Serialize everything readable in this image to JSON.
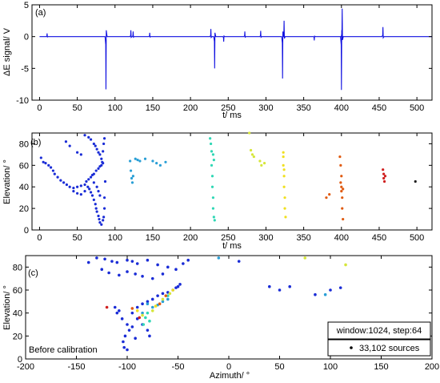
{
  "chart_data": [
    {
      "panel": "(a)",
      "type": "line",
      "xlabel": "t/ ms",
      "ylabel": "ΔE signal/ V",
      "xlim": [
        -10,
        520
      ],
      "ylim": [
        -10,
        5
      ],
      "xticks": [
        0,
        50,
        100,
        150,
        200,
        250,
        300,
        350,
        400,
        450,
        500
      ],
      "yticks": [
        -10,
        -5,
        0,
        5
      ],
      "series": [
        {
          "color": "#1010e0",
          "baseline": 0,
          "events": [
            {
              "t": 10,
              "amp": 0.5
            },
            {
              "t": 88,
              "amp": -8.3
            },
            {
              "t": 121,
              "amp": 1.0
            },
            {
              "t": 124,
              "amp": 0.8
            },
            {
              "t": 146,
              "amp": 0.6
            },
            {
              "t": 227,
              "amp": 1.2
            },
            {
              "t": 232,
              "amp": -5.0
            },
            {
              "t": 244,
              "amp": -0.8
            },
            {
              "t": 272,
              "amp": 0.8
            },
            {
              "t": 293,
              "amp": 0.9
            },
            {
              "t": 322,
              "amp": -6.6
            },
            {
              "t": 324,
              "amp": 2.5
            },
            {
              "t": 364,
              "amp": -0.6
            },
            {
              "t": 400,
              "amp": -8.4
            },
            {
              "t": 401,
              "amp": 4.4
            },
            {
              "t": 455,
              "amp": 1.5
            }
          ]
        }
      ]
    },
    {
      "panel": "(b)",
      "type": "scatter",
      "xlabel": "t/ ms",
      "ylabel": "Elevation/ °",
      "xlim": [
        -10,
        520
      ],
      "ylim": [
        0,
        90
      ],
      "xticks": [
        0,
        50,
        100,
        150,
        200,
        250,
        300,
        350,
        400,
        450,
        500
      ],
      "yticks": [
        0,
        20,
        40,
        60,
        80
      ],
      "clusters": [
        {
          "t": [
            0,
            88
          ],
          "color": "#1a2cd6",
          "points": [
            [
              2,
              67
            ],
            [
              5,
              63
            ],
            [
              8,
              62
            ],
            [
              12,
              60
            ],
            [
              15,
              58
            ],
            [
              18,
              55
            ],
            [
              20,
              52
            ],
            [
              24,
              49
            ],
            [
              28,
              46
            ],
            [
              32,
              44
            ],
            [
              36,
              42
            ],
            [
              40,
              40
            ],
            [
              45,
              39
            ],
            [
              50,
              40
            ],
            [
              55,
              41
            ],
            [
              60,
              42
            ],
            [
              62,
              45
            ],
            [
              65,
              47
            ],
            [
              68,
              49
            ],
            [
              70,
              51
            ],
            [
              72,
              52
            ],
            [
              75,
              55
            ],
            [
              78,
              57
            ],
            [
              80,
              59
            ],
            [
              82,
              60
            ],
            [
              84,
              62
            ],
            [
              66,
              38
            ],
            [
              68,
              35
            ],
            [
              70,
              32
            ],
            [
              72,
              28
            ],
            [
              74,
              24
            ],
            [
              75,
              20
            ],
            [
              76,
              17
            ],
            [
              78,
              13
            ],
            [
              79,
              10
            ],
            [
              80,
              7
            ],
            [
              82,
              5
            ],
            [
              84,
              9
            ],
            [
              85,
              12
            ],
            [
              86,
              20
            ],
            [
              86,
              30
            ],
            [
              87,
              45
            ],
            [
              60,
              88
            ],
            [
              65,
              86
            ],
            [
              68,
              84
            ],
            [
              72,
              80
            ],
            [
              74,
              78
            ],
            [
              76,
              75
            ],
            [
              78,
              72
            ],
            [
              80,
              70
            ],
            [
              82,
              66
            ],
            [
              83,
              63
            ],
            [
              84,
              73
            ],
            [
              85,
              80
            ],
            [
              86,
              85
            ],
            [
              35,
              82
            ],
            [
              40,
              78
            ],
            [
              50,
              72
            ],
            [
              55,
              70
            ],
            [
              45,
              36
            ],
            [
              50,
              34
            ],
            [
              55,
              33
            ],
            [
              60,
              36
            ],
            [
              64,
              40
            ],
            [
              72,
              44
            ],
            [
              76,
              40
            ],
            [
              78,
              36
            ],
            [
              80,
              32
            ]
          ]
        },
        {
          "t": [
            120,
            155
          ],
          "color": "#2a9fd6",
          "points": [
            [
              120,
              64
            ],
            [
              121,
              55
            ],
            [
              122,
              48
            ],
            [
              123,
              44
            ],
            [
              124,
              50
            ],
            [
              127,
              66
            ],
            [
              130,
              65
            ],
            [
              133,
              64
            ],
            [
              140,
              66
            ],
            [
              150,
              64
            ],
            [
              155,
              62
            ],
            [
              160,
              60
            ],
            [
              167,
              63
            ]
          ]
        },
        {
          "t": [
            225,
            235
          ],
          "color": "#30d7b5",
          "points": [
            [
              226,
              85
            ],
            [
              227,
              80
            ],
            [
              228,
              73
            ],
            [
              228,
              60
            ],
            [
              229,
              50
            ],
            [
              229,
              40
            ],
            [
              230,
              30
            ],
            [
              230,
              20
            ],
            [
              231,
              12
            ],
            [
              232,
              9
            ],
            [
              231,
              65
            ],
            [
              230,
              70
            ]
          ]
        },
        {
          "t": [
            278,
            300
          ],
          "color": "#d6e63a",
          "points": [
            [
              278,
              90
            ],
            [
              280,
              74
            ],
            [
              282,
              70
            ],
            [
              284,
              68
            ],
            [
              292,
              64
            ],
            [
              294,
              60
            ],
            [
              298,
              62
            ]
          ]
        },
        {
          "t": [
            320,
            330
          ],
          "color": "#f0e020",
          "points": [
            [
              323,
              72
            ],
            [
              323,
              60
            ],
            [
              324,
              50
            ],
            [
              324,
              40
            ],
            [
              325,
              30
            ],
            [
              325,
              20
            ],
            [
              326,
              12
            ],
            [
              323,
              68
            ],
            [
              324,
              56
            ]
          ]
        },
        {
          "t": [
            380,
            410
          ],
          "color": "#e05a10",
          "points": [
            [
              380,
              30
            ],
            [
              384,
              33
            ],
            [
              398,
              68
            ],
            [
              399,
              60
            ],
            [
              400,
              50
            ],
            [
              400,
              40
            ],
            [
              401,
              30
            ],
            [
              401,
              20
            ],
            [
              402,
              10
            ],
            [
              399,
              44
            ],
            [
              402,
              38
            ],
            [
              400,
              36
            ]
          ]
        },
        {
          "t": [
            450,
            500
          ],
          "color": "#d02020",
          "points": [
            [
              455,
              56
            ],
            [
              456,
              52
            ],
            [
              456,
              48
            ],
            [
              457,
              45
            ],
            [
              458,
              50
            ]
          ]
        },
        {
          "t": [
            497,
            500
          ],
          "color": "#202020",
          "points": [
            [
              498,
              45
            ]
          ]
        }
      ]
    },
    {
      "panel": "(c)",
      "type": "scatter",
      "xlabel": "Azimuth/ °",
      "ylabel": "Elevation/ °",
      "xlim": [
        -200,
        200
      ],
      "ylim": [
        0,
        90
      ],
      "xticks": [
        -200,
        -150,
        -100,
        -50,
        0,
        50,
        100,
        150,
        200
      ],
      "yticks": [
        0,
        20,
        40,
        60,
        80
      ],
      "annotation": "Before calibration",
      "legend": {
        "position": "bottom-right",
        "window_label": "window:1024, step:64",
        "sources_label": "33,102 sources"
      },
      "points": [
        [
          -110,
          40,
          "#1a2cd6"
        ],
        [
          -105,
          35,
          "#1a2cd6"
        ],
        [
          -100,
          30,
          "#1a2cd6"
        ],
        [
          -98,
          25,
          "#1a2cd6"
        ],
        [
          -102,
          20,
          "#1a2cd6"
        ],
        [
          -104,
          15,
          "#1a2cd6"
        ],
        [
          -103,
          10,
          "#1a2cd6"
        ],
        [
          -100,
          8,
          "#1a2cd6"
        ],
        [
          -95,
          40,
          "#1a2cd6"
        ],
        [
          -90,
          45,
          "#1a2cd6"
        ],
        [
          -85,
          48,
          "#1a2cd6"
        ],
        [
          -80,
          50,
          "#1a2cd6"
        ],
        [
          -75,
          52,
          "#1a2cd6"
        ],
        [
          -70,
          55,
          "#1a2cd6"
        ],
        [
          -65,
          57,
          "#1a2cd6"
        ],
        [
          -60,
          58,
          "#1a2cd6"
        ],
        [
          -55,
          60,
          "#1a2cd6"
        ],
        [
          -52,
          62,
          "#1a2cd6"
        ],
        [
          -50,
          63,
          "#1a2cd6"
        ],
        [
          -48,
          65,
          "#1a2cd6"
        ],
        [
          -90,
          35,
          "#1a2cd6"
        ],
        [
          -85,
          30,
          "#1a2cd6"
        ],
        [
          -80,
          25,
          "#1a2cd6"
        ],
        [
          -78,
          20,
          "#1a2cd6"
        ],
        [
          -112,
          45,
          "#1a2cd6"
        ],
        [
          -108,
          42,
          "#1a2cd6"
        ],
        [
          -95,
          28,
          "#1a2cd6"
        ],
        [
          -92,
          18,
          "#1a2cd6"
        ],
        [
          -80,
          48,
          "#2a9fd6"
        ],
        [
          -75,
          45,
          "#2a9fd6"
        ],
        [
          -70,
          47,
          "#2a9fd6"
        ],
        [
          -85,
          40,
          "#2a9fd6"
        ],
        [
          -65,
          50,
          "#2a9fd6"
        ],
        [
          -60,
          52,
          "#2a9fd6"
        ],
        [
          -80,
          40,
          "#30d7b5"
        ],
        [
          -82,
          36,
          "#30d7b5"
        ],
        [
          -78,
          33,
          "#30d7b5"
        ],
        [
          -84,
          30,
          "#30d7b5"
        ],
        [
          -60,
          55,
          "#30d7b5"
        ],
        [
          -75,
          42,
          "#d6e63a"
        ],
        [
          -65,
          52,
          "#d6e63a"
        ],
        [
          -58,
          57,
          "#d6e63a"
        ],
        [
          -85,
          38,
          "#d6e63a"
        ],
        [
          -72,
          46,
          "#f0e020"
        ],
        [
          -55,
          60,
          "#f0e020"
        ],
        [
          -90,
          42,
          "#f0e020"
        ],
        [
          -68,
          48,
          "#e05a10"
        ],
        [
          -95,
          44,
          "#e05a10"
        ],
        [
          -62,
          55,
          "#e05a10"
        ],
        [
          -88,
          36,
          "#d02020"
        ],
        [
          -120,
          45,
          "#d02020"
        ],
        [
          -122,
          87,
          "#1a2cd6"
        ],
        [
          -115,
          85,
          "#1a2cd6"
        ],
        [
          -110,
          84,
          "#1a2cd6"
        ],
        [
          -100,
          86,
          "#1a2cd6"
        ],
        [
          -95,
          85,
          "#1a2cd6"
        ],
        [
          -90,
          83,
          "#1a2cd6"
        ],
        [
          -125,
          78,
          "#1a2cd6"
        ],
        [
          -118,
          75,
          "#1a2cd6"
        ],
        [
          -108,
          73,
          "#1a2cd6"
        ],
        [
          -100,
          76,
          "#1a2cd6"
        ],
        [
          -92,
          74,
          "#1a2cd6"
        ],
        [
          -85,
          72,
          "#1a2cd6"
        ],
        [
          -80,
          86,
          "#1a2cd6"
        ],
        [
          -70,
          82,
          "#1a2cd6"
        ],
        [
          -60,
          80,
          "#1a2cd6"
        ],
        [
          -52,
          78,
          "#1a2cd6"
        ],
        [
          -45,
          83,
          "#1a2cd6"
        ],
        [
          -40,
          86,
          "#1a2cd6"
        ],
        [
          -130,
          88,
          "#1a2cd6"
        ],
        [
          -138,
          84,
          "#1a2cd6"
        ],
        [
          -75,
          70,
          "#1a2cd6"
        ],
        [
          -65,
          74,
          "#1a2cd6"
        ],
        [
          10,
          85,
          "#1a2cd6"
        ],
        [
          40,
          63,
          "#1a2cd6"
        ],
        [
          50,
          60,
          "#1a2cd6"
        ],
        [
          85,
          56,
          "#1a2cd6"
        ],
        [
          100,
          60,
          "#1a2cd6"
        ],
        [
          110,
          62,
          "#1a2cd6"
        ],
        [
          60,
          63,
          "#1a2cd6"
        ],
        [
          75,
          88,
          "#d6e63a"
        ],
        [
          115,
          82,
          "#d6e63a"
        ],
        [
          95,
          56,
          "#2a9fd6"
        ],
        [
          -10,
          88,
          "#2a9fd6"
        ]
      ]
    }
  ]
}
